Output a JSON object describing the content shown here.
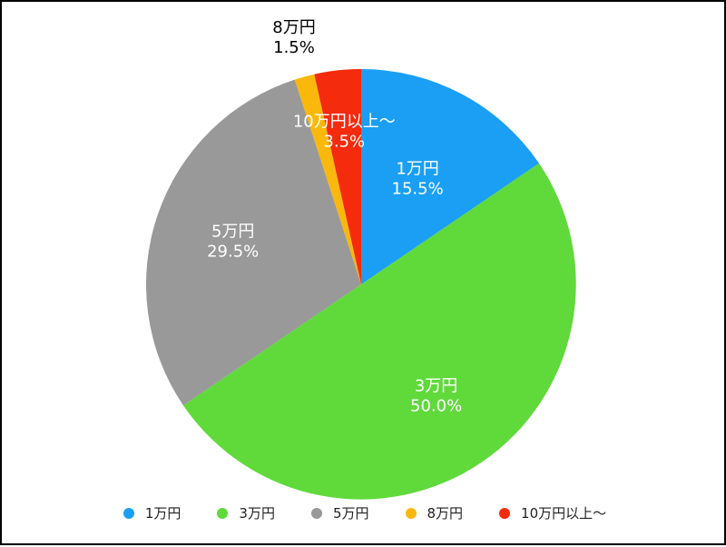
{
  "chart_data": {
    "type": "pie",
    "title": "",
    "start_angle_deg": 0,
    "direction": "clockwise",
    "legend_position": "bottom",
    "slices": [
      {
        "label": "1万円",
        "value": 15.5,
        "percent_label": "15.5%",
        "color": "#1a9ff5"
      },
      {
        "label": "3万円",
        "value": 50.0,
        "percent_label": "50.0%",
        "color": "#60d93b"
      },
      {
        "label": "5万円",
        "value": 29.5,
        "percent_label": "29.5%",
        "color": "#999999"
      },
      {
        "label": "8万円",
        "value": 1.5,
        "percent_label": "1.5%",
        "color": "#f9b80b"
      },
      {
        "label": "10万円以上〜",
        "value": 3.5,
        "percent_label": "3.5%",
        "color": "#f42b0d"
      }
    ]
  }
}
